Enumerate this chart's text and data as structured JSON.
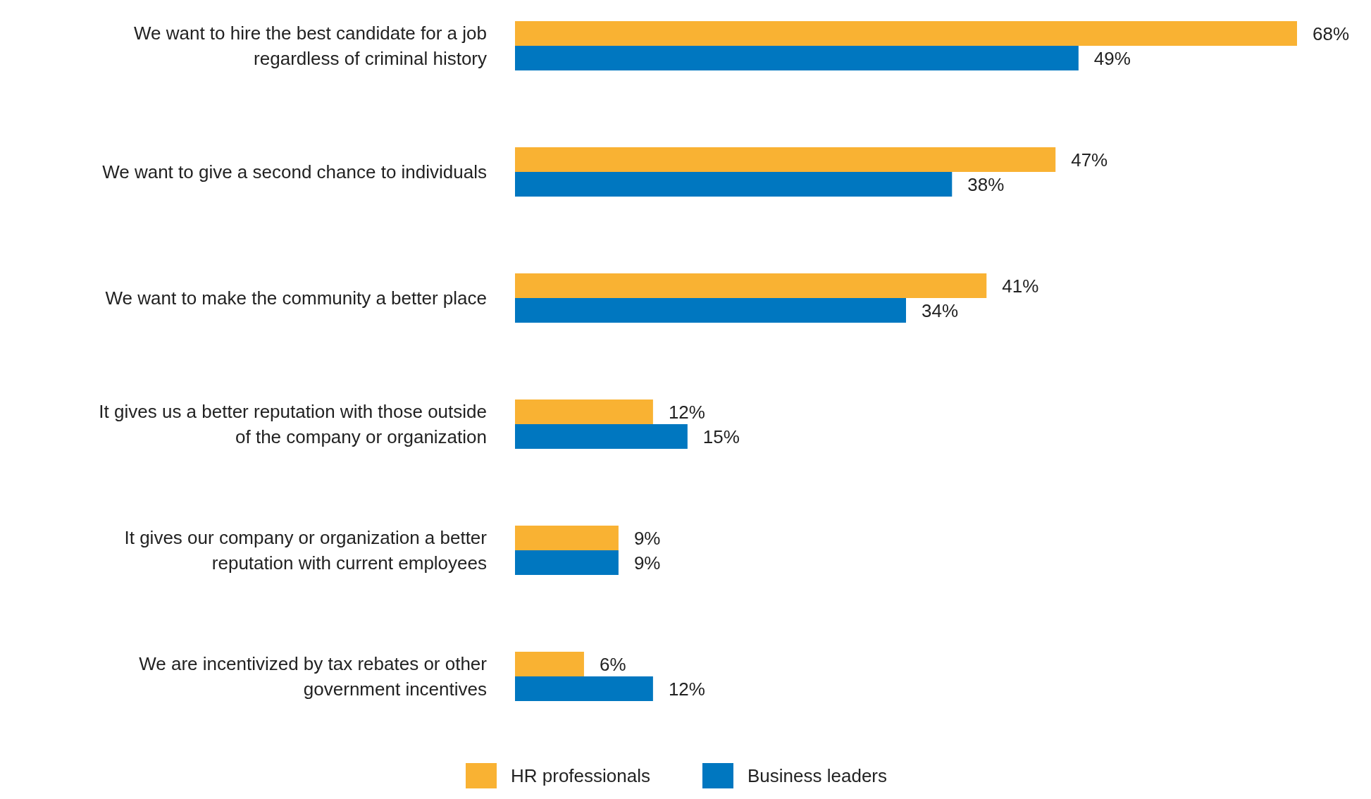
{
  "chart_data": {
    "type": "bar",
    "orientation": "horizontal",
    "legend": "bottom",
    "categories": [
      "We want to hire the best candidate for a job regardless of criminal history",
      "We want to give a second chance to individuals",
      "We want to make the community a better place",
      "It gives us a better reputation with those outside of the company or organization",
      "It gives our company or organization a better reputation with current employees",
      "We are incentivized by tax rebates or other government incentives"
    ],
    "series": [
      {
        "name": "HR professionals",
        "color": "#f9b233",
        "values": [
          68,
          47,
          41,
          12,
          9,
          6
        ],
        "value_labels": [
          "68%",
          "47%",
          "41%",
          "12%",
          "9%",
          "6%"
        ]
      },
      {
        "name": "Business leaders",
        "color": "#0077c0",
        "values": [
          49,
          38,
          34,
          15,
          9,
          12
        ],
        "value_labels": [
          "49%",
          "38%",
          "34%",
          "15%",
          "9%",
          "12%"
        ]
      }
    ]
  }
}
